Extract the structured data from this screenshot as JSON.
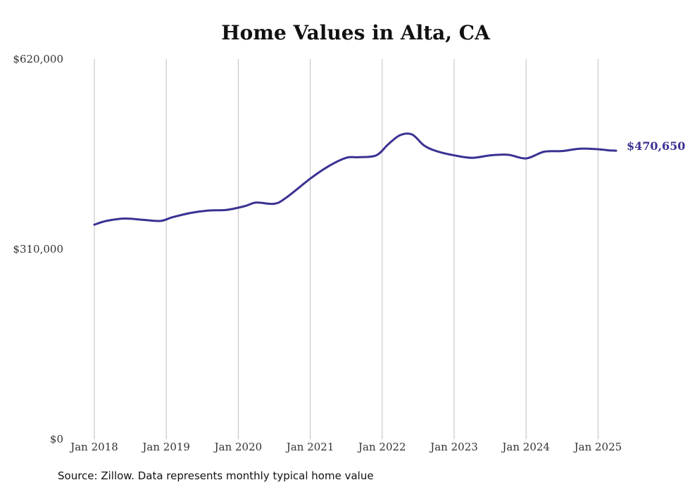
{
  "chart_data": {
    "type": "line",
    "title": "Home Values in Alta, CA",
    "source": "Source: Zillow. Data represents monthly typical home value",
    "ylim": [
      0,
      620000
    ],
    "y_ticks": [
      {
        "value": 0,
        "label": "$0"
      },
      {
        "value": 310000,
        "label": "$310,000"
      },
      {
        "value": 620000,
        "label": "$620,000"
      }
    ],
    "x_ticks": [
      "Jan 2018",
      "Jan 2019",
      "Jan 2020",
      "Jan 2021",
      "Jan 2022",
      "Jan 2023",
      "Jan 2024",
      "Jan 2025"
    ],
    "grid": "vertical",
    "line_color": "#3a3193",
    "end_label": "$470,650",
    "series": [
      {
        "x": [
          "2018-01",
          "2018-03",
          "2018-06",
          "2018-09",
          "2018-12",
          "2019-02",
          "2019-05",
          "2019-08",
          "2019-11",
          "2020-02",
          "2020-04",
          "2020-07",
          "2020-09",
          "2021-01",
          "2021-04",
          "2021-07",
          "2021-09",
          "2021-12",
          "2022-02",
          "2022-04",
          "2022-06",
          "2022-08",
          "2022-10",
          "2023-01",
          "2023-04",
          "2023-07",
          "2023-10",
          "2024-01",
          "2024-04",
          "2024-07",
          "2024-10",
          "2025-01",
          "2025-03",
          "2025-04"
        ],
        "values": [
          350000,
          356000,
          360000,
          358000,
          356000,
          362000,
          369000,
          373000,
          374000,
          380000,
          386000,
          384000,
          394000,
          425000,
          445000,
          459000,
          460000,
          463000,
          481000,
          496000,
          497000,
          479000,
          470000,
          463000,
          459000,
          463000,
          464000,
          458000,
          469000,
          470000,
          474000,
          473000,
          471000,
          470650
        ]
      }
    ]
  }
}
